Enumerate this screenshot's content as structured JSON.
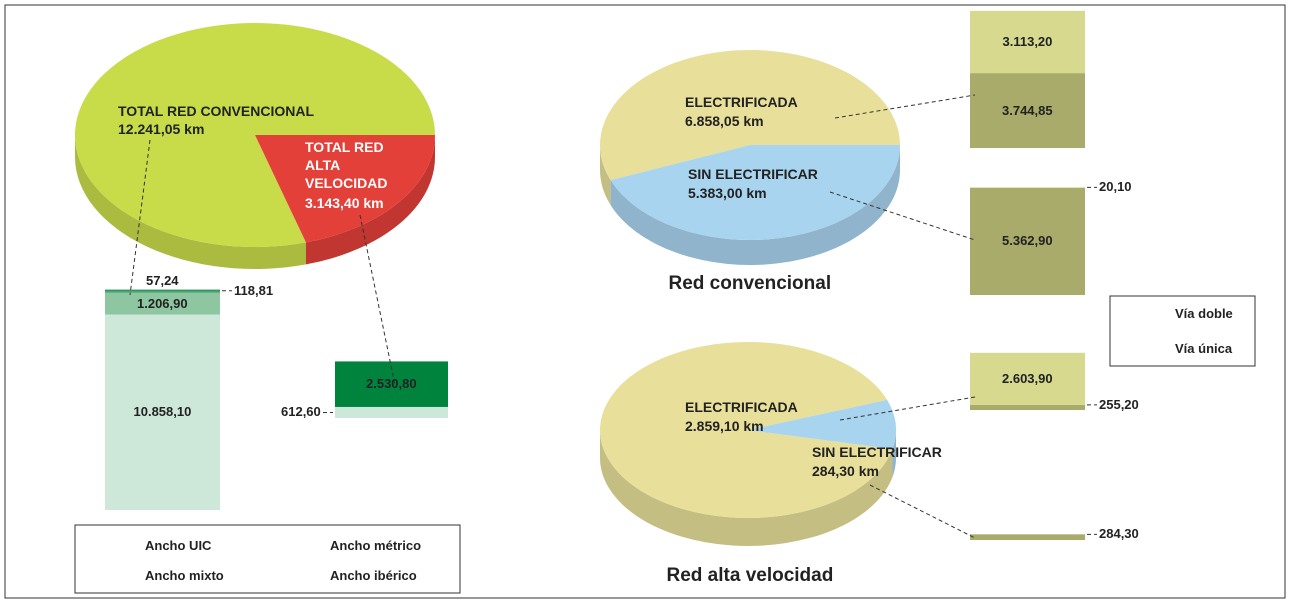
{
  "chart_data": [
    {
      "type": "pie",
      "categories": [
        "TOTAL RED CONVENCIONAL",
        "TOTAL RED ALTA VELOCIDAD"
      ],
      "values": [
        12241.05,
        3143.4
      ],
      "value_labels": [
        "12.241,05 km",
        "3.143,40 km"
      ],
      "colors": [
        "#c8dc4a",
        "#e3403a"
      ]
    },
    {
      "type": "stacked_bar",
      "series": [
        {
          "name": "Ancho UIC",
          "color": "#00843d",
          "values": [
            57.24,
            2530.8
          ],
          "value_labels": [
            "57,24",
            "2.530,80"
          ]
        },
        {
          "name": "Ancho mixto",
          "color": "#4fa374",
          "values": [
            118.81,
            null
          ],
          "value_labels": [
            "118,81",
            null
          ]
        },
        {
          "name": "Ancho métrico",
          "color": "#8fc6a2",
          "values": [
            1206.9,
            null
          ],
          "value_labels": [
            "1.206,90",
            null
          ]
        },
        {
          "name": "Ancho ibérico",
          "color": "#cde8d8",
          "values": [
            10858.1,
            612.6
          ],
          "value_labels": [
            "10.858,10",
            "612,60"
          ]
        }
      ]
    },
    {
      "type": "pie",
      "title": "Red convencional",
      "categories": [
        "ELECTRIFICADA",
        "SIN ELECTRIFICAR"
      ],
      "values": [
        6858.05,
        5383.0
      ],
      "value_labels": [
        "6.858,05 km",
        "5.383,00 km"
      ],
      "colors": [
        "#e8e09a",
        "#a8d4ef"
      ]
    },
    {
      "type": "pie",
      "title": "Red alta velocidad",
      "categories": [
        "ELECTRIFICADA",
        "SIN ELECTRIFICAR"
      ],
      "values": [
        2859.1,
        284.3
      ],
      "value_labels": [
        "2.859,10 km",
        "284,30 km"
      ],
      "colors": [
        "#e8e09a",
        "#a8d4ef"
      ]
    },
    {
      "type": "stacked_bar",
      "series": [
        {
          "name": "Vía doble",
          "color": "#d6d98e",
          "values": [
            3113.2,
            20.1,
            2603.9,
            null
          ],
          "value_labels": [
            "3.113,20",
            "20,10",
            "2.603,90",
            null
          ]
        },
        {
          "name": "Vía única",
          "color": "#a9ab6b",
          "values": [
            3744.85,
            5362.9,
            255.2,
            284.3
          ],
          "value_labels": [
            "3.744,85",
            "5.362,90",
            "255,20",
            "284,30"
          ]
        }
      ]
    }
  ]
}
